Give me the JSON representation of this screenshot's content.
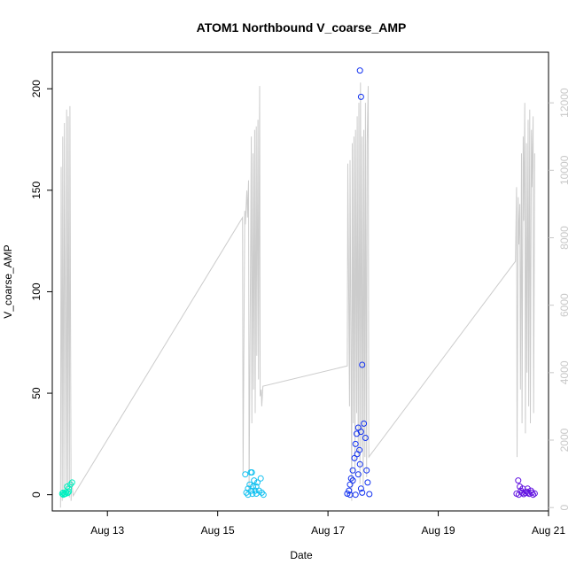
{
  "chart_data": {
    "type": "scatter",
    "title": "ATOM1 Northbound V_coarse_AMP",
    "xlabel": "Date",
    "ylabel": "V_coarse_AMP",
    "x_ticks": [
      "Aug 13",
      "Aug 15",
      "Aug 17",
      "Aug 19",
      "Aug 21"
    ],
    "x_tick_days": [
      13,
      15,
      17,
      19,
      21
    ],
    "xlim_days": [
      12.0,
      21.0
    ],
    "ylim": [
      -8,
      218
    ],
    "y_ticks": [
      0,
      50,
      100,
      150,
      200
    ],
    "y2lim": [
      -100,
      13500
    ],
    "y2_ticks": [
      0,
      2000,
      4000,
      6000,
      8000,
      10000,
      12000
    ],
    "grid": false,
    "series": [
      {
        "style": "points",
        "color": "#00f0c0",
        "x": [
          12.18,
          12.2,
          12.22,
          12.25,
          12.28,
          12.3,
          12.33,
          12.36,
          12.2,
          12.24,
          12.3,
          12.27
        ],
        "y": [
          0.5,
          1,
          0.3,
          1.2,
          0.8,
          3,
          5,
          6,
          0,
          0.4,
          1.5,
          4
        ]
      },
      {
        "style": "points",
        "color": "#10c0f0",
        "x": [
          15.5,
          15.52,
          15.55,
          15.58,
          15.6,
          15.62,
          15.64,
          15.66,
          15.68,
          15.7,
          15.72,
          15.75,
          15.78,
          15.8,
          15.83,
          15.55,
          15.61,
          15.63,
          15.7
        ],
        "y": [
          10,
          1,
          3,
          5,
          11,
          11,
          4,
          7,
          2,
          0.5,
          6,
          2,
          8,
          1,
          0,
          0,
          2,
          0.4,
          4
        ]
      },
      {
        "style": "points",
        "color": "#1030f0",
        "x": [
          17.35,
          17.38,
          17.4,
          17.42,
          17.45,
          17.48,
          17.5,
          17.52,
          17.55,
          17.58,
          17.6,
          17.62,
          17.65,
          17.68,
          17.7,
          17.72,
          17.75,
          17.57,
          17.58,
          17.6,
          17.53,
          17.55,
          17.6,
          17.62,
          17.5,
          17.45,
          17.4
        ],
        "y": [
          0.5,
          2,
          5,
          8,
          12,
          18,
          25,
          30,
          33,
          209,
          196,
          64,
          35,
          28,
          12,
          6,
          0.3,
          22,
          15,
          31,
          20,
          10,
          3,
          1,
          0,
          7,
          0
        ]
      },
      {
        "style": "points",
        "color": "#6010e0",
        "x": [
          20.42,
          20.45,
          20.48,
          20.5,
          20.52,
          20.55,
          20.58,
          20.6,
          20.62,
          20.65,
          20.68,
          20.7,
          20.72,
          20.75,
          20.46,
          20.53,
          20.63
        ],
        "y": [
          0.5,
          7,
          4,
          2,
          1,
          0.3,
          0.8,
          1.5,
          3,
          0.4,
          2,
          1,
          0,
          0.6,
          0,
          3,
          1
        ]
      },
      {
        "style": "line",
        "axis": "right",
        "color": "#cccccc",
        "x": [
          12.15,
          12.16,
          12.18,
          12.19,
          12.21,
          12.22,
          12.25,
          12.26,
          12.28,
          12.29,
          12.31,
          12.32,
          12.34,
          12.35,
          12.38,
          15.45,
          15.46,
          15.49,
          15.5,
          15.53,
          15.54,
          15.56,
          15.57,
          15.61,
          15.62,
          15.64,
          15.65,
          15.67,
          15.68,
          15.7,
          15.71,
          15.73,
          15.74,
          15.76,
          15.77,
          15.79,
          15.8,
          15.82,
          17.35,
          17.36,
          17.39,
          17.4,
          17.43,
          17.44,
          17.46,
          17.47,
          17.49,
          17.5,
          17.52,
          17.53,
          17.55,
          17.56,
          17.58,
          17.59,
          17.61,
          17.62,
          17.64,
          17.65,
          17.67,
          17.68,
          17.7,
          17.71,
          17.73,
          17.74,
          20.4,
          20.42,
          20.43,
          20.45,
          20.46,
          20.48,
          20.49,
          20.51,
          20.52,
          20.54,
          20.55,
          20.57,
          20.58,
          20.6,
          20.61,
          20.63,
          20.64,
          20.66,
          20.67,
          20.69,
          20.7,
          20.72,
          20.73,
          20.75
        ],
        "y": [
          0,
          10100,
          200,
          11000,
          300,
          11400,
          400,
          11800,
          500,
          11600,
          300,
          11900,
          200,
          800,
          350,
          8600,
          1000,
          8800,
          8400,
          9400,
          8600,
          9700,
          500,
          11000,
          2500,
          10500,
          3500,
          11200,
          2800,
          11300,
          4500,
          11500,
          3800,
          12500,
          3300,
          3500,
          3000,
          3600,
          4200,
          10200,
          3000,
          10300,
          200,
          10800,
          2500,
          11000,
          1000,
          11200,
          2800,
          11600,
          1500,
          12000,
          700,
          12600,
          1800,
          11000,
          600,
          11200,
          1500,
          12000,
          900,
          10800,
          12500,
          1500,
          7300,
          9500,
          1500,
          9200,
          7800,
          9000,
          3500,
          10500,
          2500,
          11000,
          8500,
          12000,
          2200,
          10800,
          4000,
          11500,
          3000,
          11800,
          2500,
          11200,
          9500,
          11600,
          2800,
          10500
        ]
      }
    ]
  }
}
